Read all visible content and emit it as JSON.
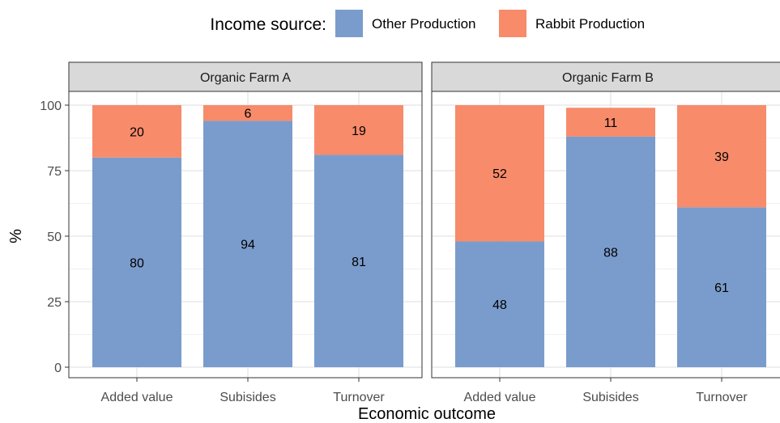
{
  "chart_data": {
    "type": "bar",
    "stacked": true,
    "xlabel": "Economic outcome",
    "ylabel": "%",
    "ylim": [
      0,
      100
    ],
    "yticks": [
      0,
      25,
      50,
      75,
      100
    ],
    "grid": true,
    "legend": {
      "title": "Income source:",
      "placement": "top",
      "entries": [
        {
          "name": "Other Production",
          "color": "#7a9ccc"
        },
        {
          "name": "Rabbit Production",
          "color": "#f78b6a"
        }
      ]
    },
    "facets": [
      {
        "title": "Organic Farm A",
        "categories": [
          "Added value",
          "Subisides",
          "Turnover"
        ],
        "series": [
          {
            "name": "Other Production",
            "values": [
              80,
              94,
              81
            ]
          },
          {
            "name": "Rabbit Production",
            "values": [
              20,
              6,
              19
            ]
          }
        ]
      },
      {
        "title": "Organic Farm B",
        "categories": [
          "Added value",
          "Subisides",
          "Turnover"
        ],
        "series": [
          {
            "name": "Other Production",
            "values": [
              48,
              88,
              61
            ]
          },
          {
            "name": "Rabbit Production",
            "values": [
              52,
              11,
              39
            ]
          }
        ]
      }
    ]
  }
}
